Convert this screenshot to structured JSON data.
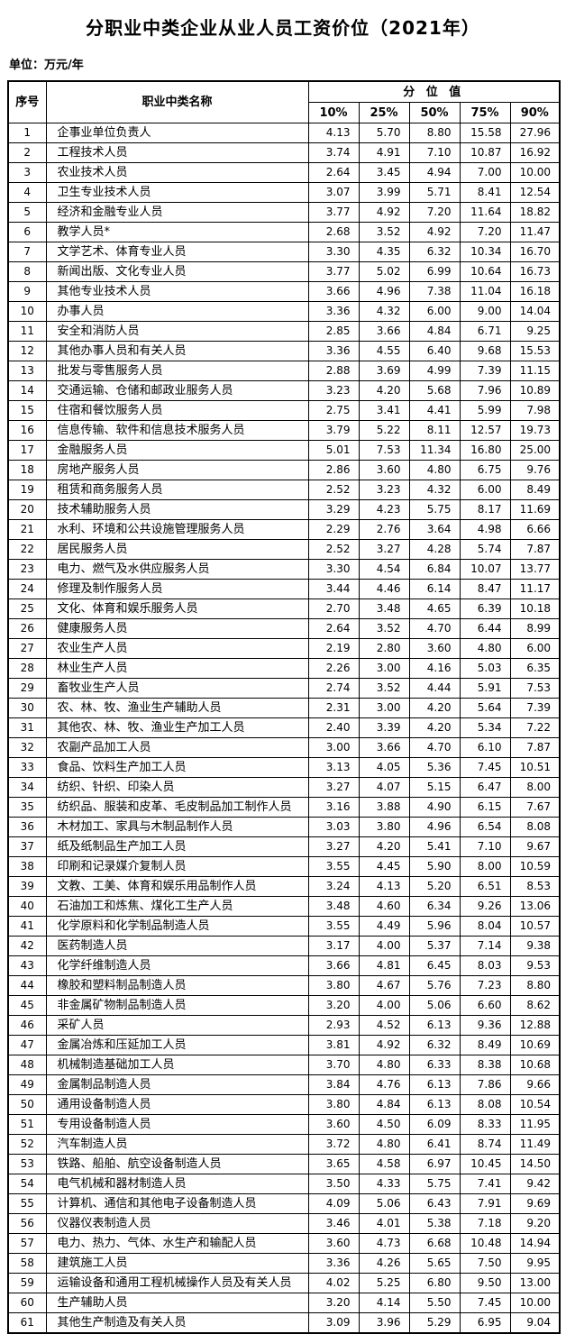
{
  "header": {
    "title": "分职业中类企业从业人员工资价位（2021年）",
    "unit_label": "单位：万元/年"
  },
  "table": {
    "col_serial": "序号",
    "col_name": "职业中类名称",
    "col_quantile_group": "分 位 值",
    "percentiles": [
      "10%",
      "25%",
      "50%",
      "75%",
      "90%"
    ],
    "rows": [
      [
        "1",
        "企事业单位负责人",
        "4.13",
        "5.70",
        "8.80",
        "15.58",
        "27.96"
      ],
      [
        "2",
        "工程技术人员",
        "3.74",
        "4.91",
        "7.10",
        "10.87",
        "16.92"
      ],
      [
        "3",
        "农业技术人员",
        "2.64",
        "3.45",
        "4.94",
        "7.00",
        "10.00"
      ],
      [
        "4",
        "卫生专业技术人员",
        "3.07",
        "3.99",
        "5.71",
        "8.41",
        "12.54"
      ],
      [
        "5",
        "经济和金融专业人员",
        "3.77",
        "4.92",
        "7.20",
        "11.64",
        "18.82"
      ],
      [
        "6",
        "教学人员*",
        "2.68",
        "3.52",
        "4.92",
        "7.20",
        "11.47"
      ],
      [
        "7",
        "文学艺术、体育专业人员",
        "3.30",
        "4.35",
        "6.32",
        "10.34",
        "16.70"
      ],
      [
        "8",
        "新闻出版、文化专业人员",
        "3.77",
        "5.02",
        "6.99",
        "10.64",
        "16.73"
      ],
      [
        "9",
        "其他专业技术人员",
        "3.66",
        "4.96",
        "7.38",
        "11.04",
        "16.18"
      ],
      [
        "10",
        "办事人员",
        "3.36",
        "4.32",
        "6.00",
        "9.00",
        "14.04"
      ],
      [
        "11",
        "安全和消防人员",
        "2.85",
        "3.66",
        "4.84",
        "6.71",
        "9.25"
      ],
      [
        "12",
        "其他办事人员和有关人员",
        "3.36",
        "4.55",
        "6.40",
        "9.68",
        "15.53"
      ],
      [
        "13",
        "批发与零售服务人员",
        "2.88",
        "3.69",
        "4.99",
        "7.39",
        "11.15"
      ],
      [
        "14",
        "交通运输、仓储和邮政业服务人员",
        "3.23",
        "4.20",
        "5.68",
        "7.96",
        "10.89"
      ],
      [
        "15",
        "住宿和餐饮服务人员",
        "2.75",
        "3.41",
        "4.41",
        "5.99",
        "7.98"
      ],
      [
        "16",
        "信息传输、软件和信息技术服务人员",
        "3.79",
        "5.22",
        "8.11",
        "12.57",
        "19.73"
      ],
      [
        "17",
        "金融服务人员",
        "5.01",
        "7.53",
        "11.34",
        "16.80",
        "25.00"
      ],
      [
        "18",
        "房地产服务人员",
        "2.86",
        "3.60",
        "4.80",
        "6.75",
        "9.76"
      ],
      [
        "19",
        "租赁和商务服务人员",
        "2.52",
        "3.23",
        "4.32",
        "6.00",
        "8.49"
      ],
      [
        "20",
        "技术辅助服务人员",
        "3.29",
        "4.23",
        "5.75",
        "8.17",
        "11.69"
      ],
      [
        "21",
        "水利、环境和公共设施管理服务人员",
        "2.29",
        "2.76",
        "3.64",
        "4.98",
        "6.66"
      ],
      [
        "22",
        "居民服务人员",
        "2.52",
        "3.27",
        "4.28",
        "5.74",
        "7.87"
      ],
      [
        "23",
        "电力、燃气及水供应服务人员",
        "3.30",
        "4.54",
        "6.84",
        "10.07",
        "13.77"
      ],
      [
        "24",
        "修理及制作服务人员",
        "3.44",
        "4.46",
        "6.14",
        "8.47",
        "11.17"
      ],
      [
        "25",
        "文化、体育和娱乐服务人员",
        "2.70",
        "3.48",
        "4.65",
        "6.39",
        "10.18"
      ],
      [
        "26",
        "健康服务人员",
        "2.64",
        "3.52",
        "4.70",
        "6.44",
        "8.99"
      ],
      [
        "27",
        "农业生产人员",
        "2.19",
        "2.80",
        "3.60",
        "4.80",
        "6.00"
      ],
      [
        "28",
        "林业生产人员",
        "2.26",
        "3.00",
        "4.16",
        "5.03",
        "6.35"
      ],
      [
        "29",
        "畜牧业生产人员",
        "2.74",
        "3.52",
        "4.44",
        "5.91",
        "7.53"
      ],
      [
        "30",
        "农、林、牧、渔业生产辅助人员",
        "2.31",
        "3.00",
        "4.20",
        "5.64",
        "7.39"
      ],
      [
        "31",
        "其他农、林、牧、渔业生产加工人员",
        "2.40",
        "3.39",
        "4.20",
        "5.34",
        "7.22"
      ],
      [
        "32",
        "农副产品加工人员",
        "3.00",
        "3.66",
        "4.70",
        "6.10",
        "7.87"
      ],
      [
        "33",
        "食品、饮料生产加工人员",
        "3.13",
        "4.05",
        "5.36",
        "7.45",
        "10.51"
      ],
      [
        "34",
        "纺织、针织、印染人员",
        "3.27",
        "4.07",
        "5.15",
        "6.47",
        "8.00"
      ],
      [
        "35",
        "纺织品、服装和皮革、毛皮制品加工制作人员",
        "3.16",
        "3.88",
        "4.90",
        "6.15",
        "7.67"
      ],
      [
        "36",
        "木材加工、家具与木制品制作人员",
        "3.03",
        "3.80",
        "4.96",
        "6.54",
        "8.08"
      ],
      [
        "37",
        "纸及纸制品生产加工人员",
        "3.27",
        "4.20",
        "5.41",
        "7.10",
        "9.67"
      ],
      [
        "38",
        "印刷和记录媒介复制人员",
        "3.55",
        "4.45",
        "5.90",
        "8.00",
        "10.59"
      ],
      [
        "39",
        "文教、工美、体育和娱乐用品制作人员",
        "3.24",
        "4.13",
        "5.20",
        "6.51",
        "8.53"
      ],
      [
        "40",
        "石油加工和炼焦、煤化工生产人员",
        "3.48",
        "4.60",
        "6.34",
        "9.26",
        "13.06"
      ],
      [
        "41",
        "化学原料和化学制品制造人员",
        "3.55",
        "4.49",
        "5.96",
        "8.04",
        "10.57"
      ],
      [
        "42",
        "医药制造人员",
        "3.17",
        "4.00",
        "5.37",
        "7.14",
        "9.38"
      ],
      [
        "43",
        "化学纤维制造人员",
        "3.66",
        "4.81",
        "6.45",
        "8.03",
        "9.53"
      ],
      [
        "44",
        "橡胶和塑料制品制造人员",
        "3.80",
        "4.67",
        "5.76",
        "7.23",
        "8.80"
      ],
      [
        "45",
        "非金属矿物制品制造人员",
        "3.20",
        "4.00",
        "5.06",
        "6.60",
        "8.62"
      ],
      [
        "46",
        "采矿人员",
        "2.93",
        "4.52",
        "6.13",
        "9.36",
        "12.88"
      ],
      [
        "47",
        "金属冶炼和压延加工人员",
        "3.81",
        "4.92",
        "6.32",
        "8.49",
        "10.69"
      ],
      [
        "48",
        "机械制造基础加工人员",
        "3.70",
        "4.80",
        "6.33",
        "8.38",
        "10.68"
      ],
      [
        "49",
        "金属制品制造人员",
        "3.84",
        "4.76",
        "6.13",
        "7.86",
        "9.66"
      ],
      [
        "50",
        "通用设备制造人员",
        "3.80",
        "4.84",
        "6.13",
        "8.08",
        "10.54"
      ],
      [
        "51",
        "专用设备制造人员",
        "3.60",
        "4.50",
        "6.09",
        "8.33",
        "11.95"
      ],
      [
        "52",
        "汽车制造人员",
        "3.72",
        "4.80",
        "6.41",
        "8.74",
        "11.49"
      ],
      [
        "53",
        "铁路、船舶、航空设备制造人员",
        "3.65",
        "4.58",
        "6.97",
        "10.45",
        "14.50"
      ],
      [
        "54",
        "电气机械和器材制造人员",
        "3.50",
        "4.33",
        "5.75",
        "7.41",
        "9.42"
      ],
      [
        "55",
        "计算机、通信和其他电子设备制造人员",
        "4.09",
        "5.06",
        "6.43",
        "7.91",
        "9.69"
      ],
      [
        "56",
        "仪器仪表制造人员",
        "3.46",
        "4.01",
        "5.38",
        "7.18",
        "9.20"
      ],
      [
        "57",
        "电力、热力、气体、水生产和输配人员",
        "3.60",
        "4.73",
        "6.68",
        "10.48",
        "14.94"
      ],
      [
        "58",
        "建筑施工人员",
        "3.36",
        "4.26",
        "5.65",
        "7.50",
        "9.95"
      ],
      [
        "59",
        "运输设备和通用工程机械操作人员及有关人员",
        "4.02",
        "5.25",
        "6.80",
        "9.50",
        "13.00"
      ],
      [
        "60",
        "生产辅助人员",
        "3.20",
        "4.14",
        "5.50",
        "7.45",
        "10.00"
      ],
      [
        "61",
        "其他生产制造及有关人员",
        "3.09",
        "3.96",
        "5.29",
        "6.95",
        "9.04"
      ]
    ]
  }
}
